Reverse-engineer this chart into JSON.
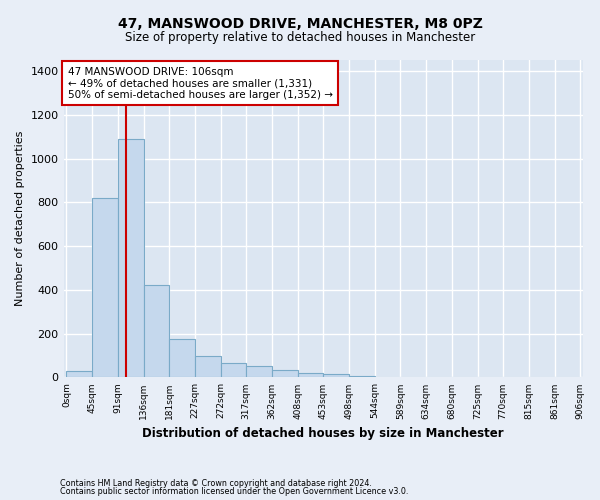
{
  "title1": "47, MANSWOOD DRIVE, MANCHESTER, M8 0PZ",
  "title2": "Size of property relative to detached houses in Manchester",
  "xlabel": "Distribution of detached houses by size in Manchester",
  "ylabel": "Number of detached properties",
  "footnote1": "Contains HM Land Registry data © Crown copyright and database right 2024.",
  "footnote2": "Contains public sector information licensed under the Open Government Licence v3.0.",
  "bar_color": "#c5d8ed",
  "bar_edge_color": "#7aaac8",
  "background_color": "#dce6f2",
  "fig_background_color": "#e8eef7",
  "grid_color": "#ffffff",
  "annotation_box_color": "#cc0000",
  "annotation_line1": "47 MANSWOOD DRIVE: 106sqm",
  "annotation_line2": "← 49% of detached houses are smaller (1,331)",
  "annotation_line3": "50% of semi-detached houses are larger (1,352) →",
  "red_line_x": 106,
  "bin_edges": [
    0,
    45,
    91,
    136,
    181,
    227,
    272,
    317,
    362,
    408,
    453,
    498,
    544,
    589,
    634,
    680,
    725,
    770,
    815,
    861,
    906
  ],
  "bar_heights": [
    30,
    820,
    1090,
    420,
    175,
    100,
    65,
    50,
    35,
    20,
    15,
    5,
    0,
    0,
    0,
    0,
    0,
    0,
    0,
    0
  ],
  "ylim": [
    0,
    1450
  ],
  "yticks": [
    0,
    200,
    400,
    600,
    800,
    1000,
    1200,
    1400
  ],
  "xlim_min": -5,
  "xlim_max": 911
}
